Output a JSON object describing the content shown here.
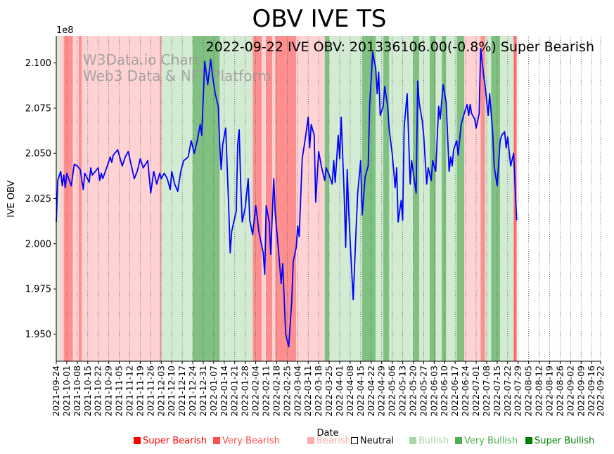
{
  "chart_data": {
    "type": "line",
    "title": "OBV IVE TS",
    "annotation": "2022-09-22 IVE OBV: 201336106.00(-0.8%) Super Bearish",
    "watermark": [
      "W3Data.io Chart",
      "Web3 Data & NFT Platform"
    ],
    "xlabel": "Date",
    "ylabel": "IVE OBV",
    "y_scale_label": "1e8",
    "ylim": [
      1.935,
      2.115
    ],
    "y_ticks": [
      1.95,
      1.975,
      2.0,
      2.025,
      2.05,
      2.075,
      2.1
    ],
    "y_tick_labels": [
      "1.950",
      "1.975",
      "2.000",
      "2.025",
      "2.050",
      "2.075",
      "2.100"
    ],
    "x_range": [
      "2021-09-24",
      "2022-09-22"
    ],
    "x_ticks": [
      "2021-09-24",
      "2021-10-01",
      "2021-10-08",
      "2021-10-15",
      "2021-10-22",
      "2021-10-29",
      "2021-11-05",
      "2021-11-12",
      "2021-11-19",
      "2021-11-26",
      "2021-12-03",
      "2021-12-10",
      "2021-12-17",
      "2021-12-24",
      "2021-12-31",
      "2022-01-07",
      "2022-01-14",
      "2022-01-21",
      "2022-01-28",
      "2022-02-04",
      "2022-02-11",
      "2022-02-18",
      "2022-02-25",
      "2022-03-04",
      "2022-03-11",
      "2022-03-18",
      "2022-03-25",
      "2022-04-01",
      "2022-04-08",
      "2022-04-15",
      "2022-04-22",
      "2022-04-29",
      "2022-05-06",
      "2022-05-13",
      "2022-05-20",
      "2022-05-27",
      "2022-06-03",
      "2022-06-10",
      "2022-06-17",
      "2022-06-24",
      "2022-07-01",
      "2022-07-08",
      "2022-07-15",
      "2022-07-22",
      "2022-07-29",
      "2022-08-05",
      "2022-08-12",
      "2022-08-19",
      "2022-08-26",
      "2022-09-02",
      "2022-09-09",
      "2022-09-16",
      "2022-09-22"
    ],
    "grid": "vertical-dotted",
    "series": [
      {
        "color": "#0000ff",
        "points": [
          [
            "2021-09-24",
            2.012
          ],
          [
            "2021-09-25",
            2.035
          ],
          [
            "2021-09-27",
            2.04
          ],
          [
            "2021-09-28",
            2.032
          ],
          [
            "2021-09-29",
            2.038
          ],
          [
            "2021-09-30",
            2.031
          ],
          [
            "2021-10-01",
            2.039
          ],
          [
            "2021-10-04",
            2.032
          ],
          [
            "2021-10-06",
            2.044
          ],
          [
            "2021-10-08",
            2.043
          ],
          [
            "2021-10-10",
            2.041
          ],
          [
            "2021-10-12",
            2.03
          ],
          [
            "2021-10-13",
            2.039
          ],
          [
            "2021-10-16",
            2.034
          ],
          [
            "2021-10-17",
            2.042
          ],
          [
            "2021-10-18",
            2.038
          ],
          [
            "2021-10-20",
            2.04
          ],
          [
            "2021-10-22",
            2.042
          ],
          [
            "2021-10-23",
            2.035
          ],
          [
            "2021-10-24",
            2.039
          ],
          [
            "2021-10-25",
            2.036
          ],
          [
            "2021-10-28",
            2.043
          ],
          [
            "2021-10-30",
            2.048
          ],
          [
            "2021-10-31",
            2.045
          ],
          [
            "2021-11-01",
            2.049
          ],
          [
            "2021-11-04",
            2.052
          ],
          [
            "2021-11-07",
            2.043
          ],
          [
            "2021-11-09",
            2.048
          ],
          [
            "2021-11-11",
            2.051
          ],
          [
            "2021-11-15",
            2.036
          ],
          [
            "2021-11-17",
            2.04
          ],
          [
            "2021-11-19",
            2.047
          ],
          [
            "2021-11-21",
            2.042
          ],
          [
            "2021-11-24",
            2.046
          ],
          [
            "2021-11-26",
            2.028
          ],
          [
            "2021-11-28",
            2.04
          ],
          [
            "2021-11-30",
            2.033
          ],
          [
            "2021-12-02",
            2.039
          ],
          [
            "2021-12-03",
            2.036
          ],
          [
            "2021-12-05",
            2.039
          ],
          [
            "2021-12-07",
            2.036
          ],
          [
            "2021-12-09",
            2.03
          ],
          [
            "2021-12-10",
            2.04
          ],
          [
            "2021-12-12",
            2.033
          ],
          [
            "2021-12-14",
            2.029
          ],
          [
            "2021-12-16",
            2.04
          ],
          [
            "2021-12-18",
            2.046
          ],
          [
            "2021-12-21",
            2.048
          ],
          [
            "2021-12-23",
            2.057
          ],
          [
            "2021-12-25",
            2.05
          ],
          [
            "2021-12-27",
            2.057
          ],
          [
            "2021-12-29",
            2.066
          ],
          [
            "2021-12-30",
            2.06
          ],
          [
            "2022-01-01",
            2.101
          ],
          [
            "2022-01-03",
            2.088
          ],
          [
            "2022-01-05",
            2.102
          ],
          [
            "2022-01-06",
            2.094
          ],
          [
            "2022-01-08",
            2.083
          ],
          [
            "2022-01-10",
            2.076
          ],
          [
            "2022-01-11",
            2.055
          ],
          [
            "2022-01-12",
            2.041
          ],
          [
            "2022-01-13",
            2.055
          ],
          [
            "2022-01-15",
            2.064
          ],
          [
            "2022-01-17",
            2.02
          ],
          [
            "2022-01-18",
            1.995
          ],
          [
            "2022-01-19",
            2.007
          ],
          [
            "2022-01-22",
            2.018
          ],
          [
            "2022-01-23",
            2.055
          ],
          [
            "2022-01-24",
            2.063
          ],
          [
            "2022-01-25",
            2.032
          ],
          [
            "2022-01-26",
            2.012
          ],
          [
            "2022-01-28",
            2.02
          ],
          [
            "2022-01-30",
            2.036
          ],
          [
            "2022-01-31",
            2.013
          ],
          [
            "2022-02-02",
            2.005
          ],
          [
            "2022-02-04",
            2.021
          ],
          [
            "2022-02-05",
            2.015
          ],
          [
            "2022-02-06",
            2.007
          ],
          [
            "2022-02-09",
            1.995
          ],
          [
            "2022-02-10",
            1.983
          ],
          [
            "2022-02-11",
            2.021
          ],
          [
            "2022-02-13",
            2.012
          ],
          [
            "2022-02-14",
            1.994
          ],
          [
            "2022-02-16",
            2.036
          ],
          [
            "2022-02-17",
            2.017
          ],
          [
            "2022-02-19",
            1.998
          ],
          [
            "2022-02-21",
            1.978
          ],
          [
            "2022-02-22",
            1.989
          ],
          [
            "2022-02-24",
            1.95
          ],
          [
            "2022-02-26",
            1.943
          ],
          [
            "2022-02-28",
            1.968
          ],
          [
            "2022-03-01",
            1.99
          ],
          [
            "2022-03-03",
            1.998
          ],
          [
            "2022-03-04",
            2.01
          ],
          [
            "2022-03-05",
            2.004
          ],
          [
            "2022-03-07",
            2.047
          ],
          [
            "2022-03-09",
            2.058
          ],
          [
            "2022-03-11",
            2.07
          ],
          [
            "2022-03-12",
            2.053
          ],
          [
            "2022-03-13",
            2.066
          ],
          [
            "2022-03-15",
            2.06
          ],
          [
            "2022-03-16",
            2.023
          ],
          [
            "2022-03-18",
            2.051
          ],
          [
            "2022-03-20",
            2.042
          ],
          [
            "2022-03-22",
            2.035
          ],
          [
            "2022-03-23",
            2.042
          ],
          [
            "2022-03-25",
            2.038
          ],
          [
            "2022-03-27",
            2.033
          ],
          [
            "2022-03-28",
            2.046
          ],
          [
            "2022-03-29",
            2.034
          ],
          [
            "2022-03-31",
            2.06
          ],
          [
            "2022-04-01",
            2.047
          ],
          [
            "2022-04-02",
            2.07
          ],
          [
            "2022-04-04",
            2.027
          ],
          [
            "2022-04-05",
            1.998
          ],
          [
            "2022-04-06",
            2.041
          ],
          [
            "2022-04-07",
            2.018
          ],
          [
            "2022-04-08",
            2.001
          ],
          [
            "2022-04-10",
            1.969
          ],
          [
            "2022-04-12",
            2.009
          ],
          [
            "2022-04-13",
            2.028
          ],
          [
            "2022-04-15",
            2.046
          ],
          [
            "2022-04-16",
            2.016
          ],
          [
            "2022-04-18",
            2.037
          ],
          [
            "2022-04-20",
            2.043
          ],
          [
            "2022-04-21",
            2.077
          ],
          [
            "2022-04-22",
            2.091
          ],
          [
            "2022-04-23",
            2.106
          ],
          [
            "2022-04-25",
            2.097
          ],
          [
            "2022-04-26",
            2.083
          ],
          [
            "2022-04-27",
            2.095
          ],
          [
            "2022-04-28",
            2.071
          ],
          [
            "2022-04-30",
            2.076
          ],
          [
            "2022-05-01",
            2.087
          ],
          [
            "2022-05-03",
            2.076
          ],
          [
            "2022-05-04",
            2.063
          ],
          [
            "2022-05-06",
            2.05
          ],
          [
            "2022-05-08",
            2.031
          ],
          [
            "2022-05-09",
            2.042
          ],
          [
            "2022-05-10",
            2.012
          ],
          [
            "2022-05-12",
            2.024
          ],
          [
            "2022-05-13",
            2.013
          ],
          [
            "2022-05-14",
            2.065
          ],
          [
            "2022-05-16",
            2.083
          ],
          [
            "2022-05-18",
            2.033
          ],
          [
            "2022-05-19",
            2.046
          ],
          [
            "2022-05-22",
            2.028
          ],
          [
            "2022-05-23",
            2.09
          ],
          [
            "2022-05-24",
            2.078
          ],
          [
            "2022-05-26",
            2.068
          ],
          [
            "2022-05-27",
            2.06
          ],
          [
            "2022-05-29",
            2.033
          ],
          [
            "2022-05-30",
            2.042
          ],
          [
            "2022-06-01",
            2.035
          ],
          [
            "2022-06-02",
            2.046
          ],
          [
            "2022-06-04",
            2.04
          ],
          [
            "2022-06-06",
            2.076
          ],
          [
            "2022-06-07",
            2.069
          ],
          [
            "2022-06-09",
            2.088
          ],
          [
            "2022-06-11",
            2.078
          ],
          [
            "2022-06-13",
            2.04
          ],
          [
            "2022-06-14",
            2.048
          ],
          [
            "2022-06-15",
            2.043
          ],
          [
            "2022-06-16",
            2.052
          ],
          [
            "2022-06-18",
            2.057
          ],
          [
            "2022-06-19",
            2.049
          ],
          [
            "2022-06-21",
            2.066
          ],
          [
            "2022-06-23",
            2.072
          ],
          [
            "2022-06-25",
            2.077
          ],
          [
            "2022-06-26",
            2.071
          ],
          [
            "2022-06-27",
            2.077
          ],
          [
            "2022-06-28",
            2.072
          ],
          [
            "2022-06-30",
            2.069
          ],
          [
            "2022-07-01",
            2.064
          ],
          [
            "2022-07-03",
            2.072
          ],
          [
            "2022-07-04",
            2.108
          ],
          [
            "2022-07-06",
            2.093
          ],
          [
            "2022-07-07",
            2.087
          ],
          [
            "2022-07-09",
            2.071
          ],
          [
            "2022-07-10",
            2.083
          ],
          [
            "2022-07-12",
            2.062
          ],
          [
            "2022-07-13",
            2.043
          ],
          [
            "2022-07-15",
            2.032
          ],
          [
            "2022-07-17",
            2.057
          ],
          [
            "2022-07-18",
            2.06
          ],
          [
            "2022-07-20",
            2.062
          ],
          [
            "2022-07-21",
            2.053
          ],
          [
            "2022-07-22",
            2.059
          ],
          [
            "2022-07-24",
            2.043
          ],
          [
            "2022-07-26",
            2.05
          ],
          [
            "2022-07-28",
            2.013
          ]
        ]
      }
    ],
    "regions_note": "background shading by signal",
    "legend": {
      "placement": "bottom",
      "items": [
        {
          "label": "Super Bearish",
          "color": "#ff0000"
        },
        {
          "label": "Very Bearish",
          "color": "#ff4d4d"
        },
        {
          "label": "Bearish",
          "color": "#ffaaaa"
        },
        {
          "label": "Neutral",
          "color": "#000000"
        },
        {
          "label": "Bullish",
          "color": "#a8d8a8"
        },
        {
          "label": "Very Bullish",
          "color": "#4caf50"
        },
        {
          "label": "Super Bullish",
          "color": "#008000"
        }
      ]
    },
    "regions": [
      {
        "from": "2021-09-24",
        "to": "2021-09-26",
        "signal": "Bullish"
      },
      {
        "from": "2021-09-26",
        "to": "2021-09-29",
        "signal": "Bearish"
      },
      {
        "from": "2021-09-29",
        "to": "2021-10-05",
        "signal": "Very Bearish"
      },
      {
        "from": "2021-10-05",
        "to": "2021-10-09",
        "signal": "Bearish"
      },
      {
        "from": "2021-10-09",
        "to": "2021-10-11",
        "signal": "Very Bearish"
      },
      {
        "from": "2021-10-11",
        "to": "2021-12-02",
        "signal": "Bearish"
      },
      {
        "from": "2021-12-02",
        "to": "2021-12-03",
        "signal": "Very Bearish"
      },
      {
        "from": "2021-12-03",
        "to": "2021-12-24",
        "signal": "Bullish"
      },
      {
        "from": "2021-12-24",
        "to": "2022-01-11",
        "signal": "Very Bullish"
      },
      {
        "from": "2022-01-11",
        "to": "2022-01-15",
        "signal": "Bullish"
      },
      {
        "from": "2022-01-15",
        "to": "2022-02-02",
        "signal": "Bullish"
      },
      {
        "from": "2022-02-02",
        "to": "2022-02-08",
        "signal": "Very Bearish"
      },
      {
        "from": "2022-02-08",
        "to": "2022-02-11",
        "signal": "Bearish"
      },
      {
        "from": "2022-02-11",
        "to": "2022-02-15",
        "signal": "Very Bearish"
      },
      {
        "from": "2022-02-15",
        "to": "2022-02-17",
        "signal": "Bearish"
      },
      {
        "from": "2022-02-17",
        "to": "2022-03-03",
        "signal": "Very Bearish"
      },
      {
        "from": "2022-03-03",
        "to": "2022-03-22",
        "signal": "Bearish"
      },
      {
        "from": "2022-03-22",
        "to": "2022-03-25",
        "signal": "Very Bullish"
      },
      {
        "from": "2022-03-25",
        "to": "2022-04-16",
        "signal": "Bullish"
      },
      {
        "from": "2022-04-16",
        "to": "2022-04-25",
        "signal": "Very Bullish"
      },
      {
        "from": "2022-04-25",
        "to": "2022-04-30",
        "signal": "Bullish"
      },
      {
        "from": "2022-04-30",
        "to": "2022-05-04",
        "signal": "Very Bullish"
      },
      {
        "from": "2022-05-04",
        "to": "2022-05-20",
        "signal": "Bullish"
      },
      {
        "from": "2022-05-20",
        "to": "2022-05-24",
        "signal": "Very Bullish"
      },
      {
        "from": "2022-05-24",
        "to": "2022-05-31",
        "signal": "Bullish"
      },
      {
        "from": "2022-05-31",
        "to": "2022-06-04",
        "signal": "Very Bullish"
      },
      {
        "from": "2022-06-04",
        "to": "2022-06-08",
        "signal": "Bullish"
      },
      {
        "from": "2022-06-08",
        "to": "2022-06-11",
        "signal": "Very Bullish"
      },
      {
        "from": "2022-06-11",
        "to": "2022-06-18",
        "signal": "Bullish"
      },
      {
        "from": "2022-06-18",
        "to": "2022-06-23",
        "signal": "Very Bullish"
      },
      {
        "from": "2022-06-23",
        "to": "2022-07-04",
        "signal": "Bearish"
      },
      {
        "from": "2022-07-04",
        "to": "2022-07-07",
        "signal": "Very Bearish"
      },
      {
        "from": "2022-07-07",
        "to": "2022-07-11",
        "signal": "Bullish"
      },
      {
        "from": "2022-07-11",
        "to": "2022-07-17",
        "signal": "Very Bullish"
      },
      {
        "from": "2022-07-17",
        "to": "2022-07-22",
        "signal": "Bullish"
      },
      {
        "from": "2022-07-22",
        "to": "2022-07-26",
        "signal": "Bullish"
      },
      {
        "from": "2022-07-26",
        "to": "2022-07-28",
        "signal": "Super Bearish"
      }
    ]
  }
}
